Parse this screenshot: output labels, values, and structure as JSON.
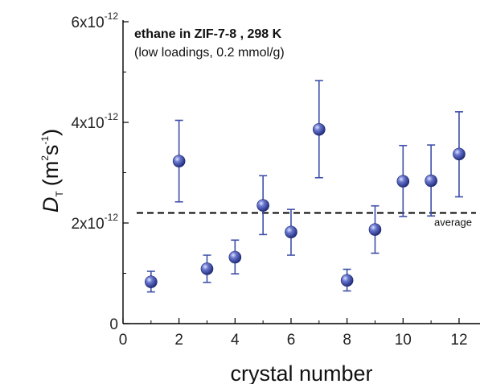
{
  "chart_data": {
    "type": "scatter",
    "title": "ethane in ZIF-7-8 , 298 K",
    "subtitle": "(low loadings, 0.2 mmol/g)",
    "xlabel": "crystal number",
    "ylabel": {
      "symbol": "D",
      "subscript": "T",
      "unit_open": "(m",
      "unit_sup1": "2",
      "unit_mid": "s",
      "unit_sup2": "-1",
      "unit_close": ")"
    },
    "xlim": [
      0,
      12.6
    ],
    "ylim": [
      0,
      6e-12
    ],
    "x_ticks": [
      {
        "value": 0,
        "label": "0"
      },
      {
        "value": 2,
        "label": "2"
      },
      {
        "value": 4,
        "label": "4"
      },
      {
        "value": 6,
        "label": "6"
      },
      {
        "value": 8,
        "label": "8"
      },
      {
        "value": 10,
        "label": "10"
      },
      {
        "value": 12,
        "label": "12"
      }
    ],
    "y_ticks": [
      {
        "value": 0,
        "base": "0",
        "exp": ""
      },
      {
        "value": 2e-12,
        "base": "2x10",
        "exp": "-12"
      },
      {
        "value": 4e-12,
        "base": "4x10",
        "exp": "-12"
      },
      {
        "value": 6e-12,
        "base": "6x10",
        "exp": "-12"
      }
    ],
    "reference_line": {
      "label": "average",
      "y": 2.2e-12
    },
    "marker_color": "#3d4fa8",
    "errorbar_color": "#3d4fa8",
    "points": [
      {
        "x": 1,
        "y": 8.3e-13,
        "lower": 6.3e-13,
        "upper": 1.04e-12
      },
      {
        "x": 2,
        "y": 3.23e-12,
        "lower": 2.42e-12,
        "upper": 4.04e-12
      },
      {
        "x": 3,
        "y": 1.09e-12,
        "lower": 8.2e-13,
        "upper": 1.36e-12
      },
      {
        "x": 4,
        "y": 1.32e-12,
        "lower": 9.9e-13,
        "upper": 1.66e-12
      },
      {
        "x": 5,
        "y": 2.35e-12,
        "lower": 1.77e-12,
        "upper": 2.94e-12
      },
      {
        "x": 6,
        "y": 1.82e-12,
        "lower": 1.36e-12,
        "upper": 2.27e-12
      },
      {
        "x": 7,
        "y": 3.86e-12,
        "lower": 2.9e-12,
        "upper": 4.83e-12
      },
      {
        "x": 8,
        "y": 8.6e-13,
        "lower": 6.5e-13,
        "upper": 1.08e-12
      },
      {
        "x": 9,
        "y": 1.87e-12,
        "lower": 1.4e-12,
        "upper": 2.34e-12
      },
      {
        "x": 10,
        "y": 2.83e-12,
        "lower": 2.13e-12,
        "upper": 3.54e-12
      },
      {
        "x": 11,
        "y": 2.84e-12,
        "lower": 2.14e-12,
        "upper": 3.55e-12
      },
      {
        "x": 12,
        "y": 3.37e-12,
        "lower": 2.52e-12,
        "upper": 4.21e-12
      }
    ]
  }
}
